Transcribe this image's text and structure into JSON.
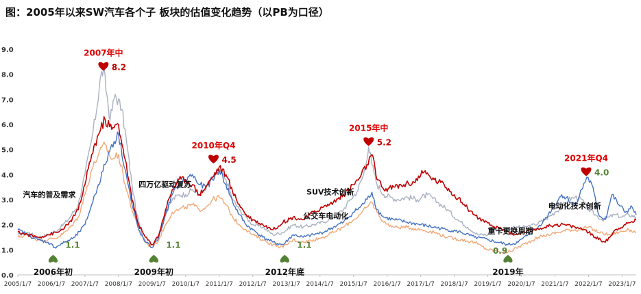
{
  "chart_data": {
    "type": "line",
    "title": "图：2005年以来SW汽车各个子 板块的估值变化趋势（以PB为口径）",
    "xlabel": "",
    "ylabel": "",
    "ylim": [
      0,
      9
    ],
    "y_ticks": [
      0,
      1,
      2,
      3,
      4,
      5,
      6,
      7,
      8,
      9
    ],
    "y_tick_labels": [
      "0.0",
      "1.0",
      "2.0",
      "3.0",
      "4.0",
      "5.0",
      "6.0",
      "7.0",
      "8.0",
      "9.0"
    ],
    "xlim": [
      2005.0,
      2023.42
    ],
    "x_ticks": [
      2005,
      2006,
      2007,
      2008,
      2009,
      2010,
      2011,
      2012,
      2013,
      2014,
      2015,
      2016,
      2017,
      2018,
      2019,
      2020,
      2021,
      2022,
      2023
    ],
    "x_tick_labels": [
      "2005/1/7",
      "2006/1/7",
      "2007/1/7",
      "2008/1/7",
      "2009/1/7",
      "2010/1/7",
      "2011/1/7",
      "2012/1/7",
      "2013/1/7",
      "2014/1/7",
      "2015/1/7",
      "2016/1/7",
      "2017/1/7",
      "2018/1/7",
      "2019/1/7",
      "2020/1/7",
      "2021/1/7",
      "2022/1/7",
      "2023/1/7"
    ],
    "grid": false,
    "legend": "none",
    "series": [
      {
        "name": "gray",
        "color": "#a9b1c2",
        "x": [
          2005.0,
          2005.3,
          2005.6,
          2005.9,
          2006.2,
          2006.5,
          2006.8,
          2007.0,
          2007.2,
          2007.35,
          2007.45,
          2007.55,
          2007.65,
          2007.75,
          2007.9,
          2008.1,
          2008.25,
          2008.4,
          2008.55,
          2008.7,
          2008.85,
          2009.0,
          2009.2,
          2009.4,
          2009.6,
          2009.8,
          2010.0,
          2010.2,
          2010.4,
          2010.6,
          2010.8,
          2011.0,
          2011.2,
          2011.4,
          2011.6,
          2011.8,
          2012.0,
          2012.3,
          2012.6,
          2012.9,
          2013.2,
          2013.5,
          2013.8,
          2014.1,
          2014.4,
          2014.7,
          2014.9,
          2015.1,
          2015.3,
          2015.45,
          2015.55,
          2015.7,
          2015.9,
          2016.1,
          2016.3,
          2016.6,
          2016.9,
          2017.2,
          2017.5,
          2017.8,
          2018.1,
          2018.4,
          2018.7,
          2019.0,
          2019.2,
          2019.5,
          2019.8,
          2020.1,
          2020.4,
          2020.7,
          2021.0,
          2021.2,
          2021.4,
          2021.6,
          2021.8,
          2022.0,
          2022.2,
          2022.4,
          2022.6,
          2022.8,
          2023.0,
          2023.2,
          2023.42
        ],
        "values": [
          1.6,
          1.7,
          1.5,
          1.6,
          1.8,
          2.2,
          2.8,
          4.0,
          5.4,
          6.6,
          7.8,
          8.2,
          7.2,
          6.2,
          7.2,
          6.6,
          5.2,
          3.6,
          2.4,
          1.6,
          1.3,
          1.2,
          1.6,
          2.4,
          3.0,
          3.2,
          3.2,
          3.4,
          3.2,
          3.4,
          3.9,
          4.2,
          3.8,
          3.0,
          2.6,
          2.3,
          2.0,
          1.9,
          1.6,
          1.7,
          2.0,
          1.9,
          2.0,
          2.1,
          2.3,
          2.6,
          3.0,
          3.3,
          4.0,
          5.1,
          4.4,
          3.6,
          3.2,
          3.1,
          3.0,
          3.1,
          3.0,
          3.2,
          2.9,
          2.6,
          2.2,
          1.9,
          1.6,
          1.6,
          1.8,
          1.8,
          1.9,
          1.9,
          2.0,
          2.2,
          2.5,
          2.7,
          3.0,
          3.1,
          3.0,
          2.6,
          2.4,
          2.2,
          2.3,
          2.4,
          2.3,
          2.4,
          2.3
        ]
      },
      {
        "name": "orange",
        "color": "#f2a877",
        "x": [
          2005.0,
          2005.3,
          2005.6,
          2005.9,
          2006.2,
          2006.5,
          2006.8,
          2007.0,
          2007.2,
          2007.4,
          2007.6,
          2007.8,
          2008.0,
          2008.2,
          2008.4,
          2008.6,
          2008.8,
          2009.0,
          2009.2,
          2009.4,
          2009.6,
          2009.8,
          2010.0,
          2010.2,
          2010.4,
          2010.6,
          2010.8,
          2011.0,
          2011.2,
          2011.4,
          2011.6,
          2011.8,
          2012.0,
          2012.3,
          2012.6,
          2012.9,
          2013.2,
          2013.5,
          2013.8,
          2014.1,
          2014.4,
          2014.7,
          2015.0,
          2015.2,
          2015.4,
          2015.55,
          2015.7,
          2015.9,
          2016.2,
          2016.6,
          2017.0,
          2017.4,
          2017.8,
          2018.2,
          2018.6,
          2019.0,
          2019.3,
          2019.6,
          2019.9,
          2020.2,
          2020.5,
          2020.8,
          2021.1,
          2021.4,
          2021.7,
          2022.0,
          2022.3,
          2022.6,
          2022.9,
          2023.2,
          2023.42
        ],
        "values": [
          1.5,
          1.6,
          1.4,
          1.4,
          1.5,
          1.8,
          2.3,
          3.2,
          4.2,
          4.8,
          5.2,
          4.6,
          4.8,
          3.6,
          2.6,
          1.8,
          1.3,
          1.1,
          1.4,
          2.0,
          2.5,
          2.6,
          2.7,
          2.8,
          2.6,
          2.7,
          3.0,
          3.1,
          2.8,
          2.3,
          2.0,
          1.8,
          1.6,
          1.4,
          1.2,
          1.1,
          1.4,
          1.3,
          1.4,
          1.5,
          1.7,
          1.9,
          2.2,
          2.4,
          2.7,
          2.9,
          2.5,
          2.1,
          1.9,
          1.9,
          1.8,
          1.7,
          1.5,
          1.4,
          1.3,
          1.0,
          0.95,
          0.9,
          1.1,
          1.3,
          1.5,
          1.6,
          1.7,
          1.8,
          1.8,
          1.9,
          1.7,
          1.6,
          1.7,
          1.8,
          1.7
        ]
      },
      {
        "name": "blue",
        "color": "#4472c4",
        "x": [
          2005.0,
          2005.3,
          2005.6,
          2005.9,
          2006.1,
          2006.4,
          2006.7,
          2007.0,
          2007.2,
          2007.4,
          2007.6,
          2007.8,
          2008.0,
          2008.2,
          2008.4,
          2008.6,
          2008.8,
          2009.0,
          2009.2,
          2009.4,
          2009.6,
          2009.8,
          2010.0,
          2010.2,
          2010.4,
          2010.6,
          2010.8,
          2011.0,
          2011.2,
          2011.4,
          2011.6,
          2011.8,
          2012.0,
          2012.3,
          2012.6,
          2012.9,
          2013.2,
          2013.5,
          2013.8,
          2014.1,
          2014.4,
          2014.7,
          2015.0,
          2015.2,
          2015.4,
          2015.55,
          2015.7,
          2015.9,
          2016.2,
          2016.6,
          2017.0,
          2017.4,
          2017.8,
          2018.2,
          2018.6,
          2019.0,
          2019.3,
          2019.6,
          2019.9,
          2020.2,
          2020.5,
          2020.8,
          2021.0,
          2021.2,
          2021.4,
          2021.6,
          2021.8,
          2021.95,
          2022.1,
          2022.3,
          2022.5,
          2022.7,
          2022.9,
          2023.1,
          2023.3,
          2023.42
        ],
        "values": [
          1.8,
          1.6,
          1.4,
          1.3,
          1.1,
          1.3,
          1.5,
          2.0,
          2.8,
          3.6,
          4.4,
          5.2,
          5.6,
          4.2,
          2.8,
          1.8,
          1.3,
          1.1,
          1.5,
          2.4,
          3.2,
          3.6,
          3.8,
          4.0,
          3.6,
          3.5,
          3.8,
          4.2,
          3.6,
          2.9,
          2.4,
          2.0,
          1.8,
          1.5,
          1.3,
          1.2,
          1.6,
          1.5,
          1.6,
          1.7,
          1.9,
          2.1,
          2.5,
          2.7,
          3.0,
          3.3,
          2.6,
          2.3,
          2.2,
          2.1,
          2.0,
          1.9,
          1.8,
          1.7,
          1.5,
          1.4,
          1.3,
          1.2,
          1.3,
          1.6,
          1.9,
          2.4,
          2.8,
          3.2,
          3.0,
          2.8,
          3.4,
          3.9,
          3.6,
          2.4,
          2.2,
          3.2,
          2.8,
          2.5,
          2.7,
          2.4
        ]
      },
      {
        "name": "red",
        "color": "#c00000",
        "x": [
          2005.0,
          2005.3,
          2005.6,
          2005.9,
          2006.2,
          2006.5,
          2006.8,
          2007.0,
          2007.2,
          2007.4,
          2007.6,
          2007.8,
          2008.0,
          2008.2,
          2008.4,
          2008.6,
          2008.8,
          2009.0,
          2009.2,
          2009.4,
          2009.6,
          2009.8,
          2010.0,
          2010.2,
          2010.4,
          2010.6,
          2010.8,
          2011.0,
          2011.2,
          2011.4,
          2011.6,
          2011.8,
          2012.0,
          2012.3,
          2012.6,
          2012.9,
          2013.2,
          2013.5,
          2013.8,
          2014.1,
          2014.4,
          2014.7,
          2015.0,
          2015.2,
          2015.4,
          2015.55,
          2015.7,
          2015.9,
          2016.2,
          2016.5,
          2016.8,
          2017.1,
          2017.4,
          2017.7,
          2018.0,
          2018.3,
          2018.6,
          2018.9,
          2019.2,
          2019.5,
          2019.8,
          2020.1,
          2020.4,
          2020.7,
          2021.0,
          2021.3,
          2021.6,
          2021.9,
          2022.2,
          2022.5,
          2022.8,
          2023.1,
          2023.42
        ],
        "values": [
          1.7,
          1.6,
          1.5,
          1.6,
          1.7,
          2.0,
          2.6,
          3.6,
          4.8,
          5.6,
          6.2,
          5.8,
          6.0,
          4.6,
          3.0,
          2.0,
          1.5,
          1.2,
          1.6,
          2.6,
          3.4,
          3.8,
          3.8,
          3.6,
          3.2,
          3.5,
          3.9,
          4.3,
          4.0,
          3.3,
          2.8,
          2.4,
          2.2,
          2.0,
          1.8,
          2.1,
          2.3,
          2.2,
          2.5,
          2.7,
          2.9,
          3.2,
          3.6,
          3.9,
          4.4,
          4.8,
          3.8,
          3.4,
          3.5,
          3.6,
          3.7,
          4.1,
          3.8,
          3.6,
          3.2,
          2.8,
          2.4,
          2.1,
          1.9,
          1.8,
          1.6,
          1.7,
          1.8,
          1.9,
          2.0,
          2.0,
          1.9,
          1.8,
          1.5,
          1.3,
          1.8,
          2.0,
          2.2
        ]
      }
    ],
    "annotations": [
      {
        "label": "2007年中",
        "value": "8.2",
        "type": "peak",
        "x": 2007.55,
        "y": 8.2
      },
      {
        "label": "2010年Q4",
        "value": "4.5",
        "type": "peak",
        "x": 2010.83,
        "y": 4.5
      },
      {
        "label": "2015年中",
        "value": "5.2",
        "type": "peak",
        "x": 2015.45,
        "y": 5.2
      },
      {
        "label": "2021年Q4",
        "value": "4.0",
        "type": "peak",
        "x": 2021.93,
        "y": 4.0
      },
      {
        "label": "2006年初",
        "value": "1.1",
        "type": "trough",
        "x": 2006.05,
        "y": 1.1
      },
      {
        "label": "2009年初",
        "value": "1.1",
        "type": "trough",
        "x": 2009.05,
        "y": 1.1
      },
      {
        "label": "2012年底",
        "value": "1.1",
        "type": "trough",
        "x": 2012.95,
        "y": 1.1
      },
      {
        "label": "2019年",
        "value": "0.9",
        "type": "trough",
        "x": 2019.6,
        "y": 0.9
      }
    ],
    "text_notes": [
      {
        "text": "汽车的普及需求",
        "x": 2005.15,
        "y": 3.1
      },
      {
        "text": "四万亿驱动复苏",
        "x": 2008.6,
        "y": 3.5
      },
      {
        "text": "SUV技术创新",
        "x": 2013.6,
        "y": 3.2
      },
      {
        "text": "公交车电动化",
        "x": 2013.5,
        "y": 2.25
      },
      {
        "text": "重卡更换周期",
        "x": 2019.0,
        "y": 1.65
      },
      {
        "text": "电动化技术创新",
        "x": 2020.8,
        "y": 2.65
      }
    ]
  }
}
